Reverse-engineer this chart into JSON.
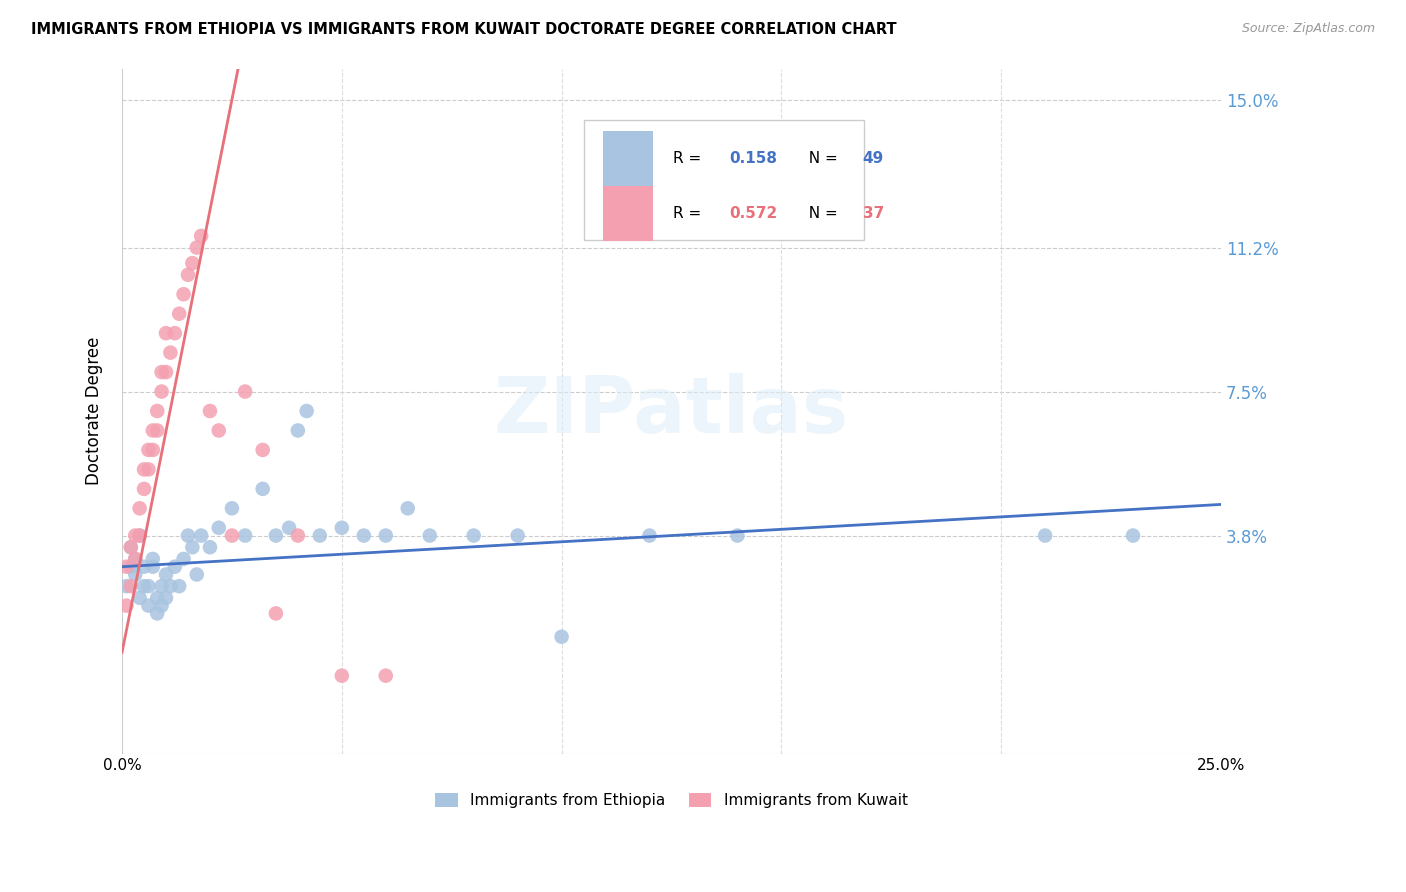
{
  "title": "IMMIGRANTS FROM ETHIOPIA VS IMMIGRANTS FROM KUWAIT DOCTORATE DEGREE CORRELATION CHART",
  "source": "Source: ZipAtlas.com",
  "ylabel": "Doctorate Degree",
  "xlim": [
    0.0,
    0.25
  ],
  "ylim": [
    -0.018,
    0.158
  ],
  "yticks": [
    0.0,
    0.038,
    0.075,
    0.112,
    0.15
  ],
  "ytick_labels": [
    "",
    "3.8%",
    "7.5%",
    "11.2%",
    "15.0%"
  ],
  "xtick_labels": [
    "0.0%",
    "25.0%"
  ],
  "ethiopia_R": 0.158,
  "ethiopia_N": 49,
  "kuwait_R": 0.572,
  "kuwait_N": 37,
  "ethiopia_color": "#a8c4e0",
  "kuwait_color": "#f4a0b0",
  "ethiopia_line_color": "#4472c4",
  "kuwait_line_color": "#e8707a",
  "dash_color": "#c8c8c8",
  "watermark": "ZIPatlas",
  "ethiopia_x": [
    0.001,
    0.002,
    0.002,
    0.003,
    0.003,
    0.004,
    0.004,
    0.005,
    0.005,
    0.006,
    0.006,
    0.007,
    0.007,
    0.008,
    0.008,
    0.009,
    0.009,
    0.01,
    0.01,
    0.011,
    0.012,
    0.013,
    0.014,
    0.015,
    0.016,
    0.017,
    0.018,
    0.02,
    0.022,
    0.025,
    0.028,
    0.032,
    0.035,
    0.038,
    0.04,
    0.042,
    0.045,
    0.05,
    0.055,
    0.06,
    0.065,
    0.07,
    0.08,
    0.09,
    0.1,
    0.12,
    0.14,
    0.21,
    0.23
  ],
  "ethiopia_y": [
    0.025,
    0.03,
    0.035,
    0.028,
    0.032,
    0.022,
    0.038,
    0.025,
    0.03,
    0.02,
    0.025,
    0.03,
    0.032,
    0.018,
    0.022,
    0.02,
    0.025,
    0.022,
    0.028,
    0.025,
    0.03,
    0.025,
    0.032,
    0.038,
    0.035,
    0.028,
    0.038,
    0.035,
    0.04,
    0.045,
    0.038,
    0.05,
    0.038,
    0.04,
    0.065,
    0.07,
    0.038,
    0.04,
    0.038,
    0.038,
    0.045,
    0.038,
    0.038,
    0.038,
    0.012,
    0.038,
    0.038,
    0.038,
    0.038
  ],
  "kuwait_x": [
    0.001,
    0.001,
    0.002,
    0.002,
    0.003,
    0.003,
    0.004,
    0.004,
    0.005,
    0.005,
    0.006,
    0.006,
    0.007,
    0.007,
    0.008,
    0.008,
    0.009,
    0.009,
    0.01,
    0.01,
    0.011,
    0.012,
    0.013,
    0.014,
    0.015,
    0.016,
    0.017,
    0.018,
    0.02,
    0.022,
    0.025,
    0.028,
    0.032,
    0.035,
    0.04,
    0.05,
    0.06
  ],
  "kuwait_y": [
    0.02,
    0.03,
    0.025,
    0.035,
    0.032,
    0.038,
    0.038,
    0.045,
    0.05,
    0.055,
    0.055,
    0.06,
    0.06,
    0.065,
    0.065,
    0.07,
    0.075,
    0.08,
    0.08,
    0.09,
    0.085,
    0.09,
    0.095,
    0.1,
    0.105,
    0.108,
    0.112,
    0.115,
    0.07,
    0.065,
    0.038,
    0.075,
    0.06,
    0.018,
    0.038,
    0.002,
    0.002
  ]
}
